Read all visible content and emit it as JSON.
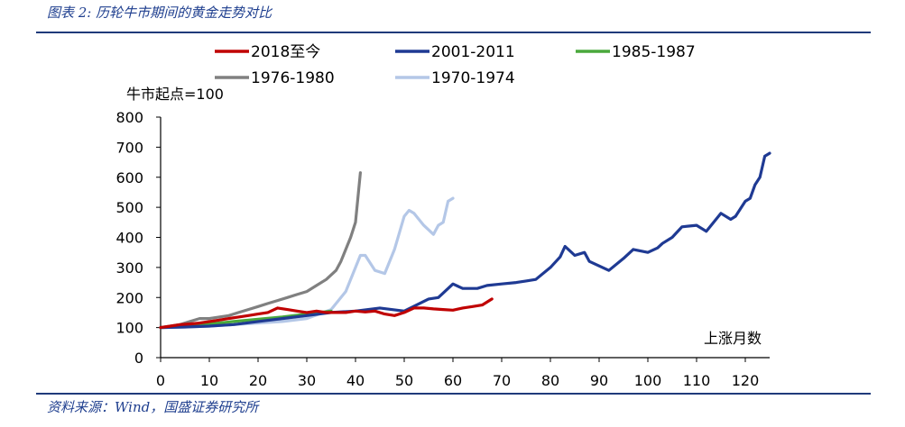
{
  "figure": {
    "title": "图表 2:  历轮牛市期间的黄金走势对比",
    "source": "资料来源：Wind，国盛证券研究所"
  },
  "chart_data": {
    "type": "line",
    "ylabel": "牛市起点=100",
    "xlabel": "上涨月数",
    "xlim": [
      0,
      125
    ],
    "ylim": [
      0,
      800
    ],
    "xticks": [
      "0",
      "10",
      "20",
      "30",
      "40",
      "50",
      "60",
      "70",
      "80",
      "90",
      "100",
      "110",
      "120"
    ],
    "yticks": [
      "0",
      "100",
      "200",
      "300",
      "400",
      "500",
      "600",
      "700",
      "800"
    ],
    "grid": false,
    "legend_position": "top",
    "series": [
      {
        "name": "2018至今",
        "color": "#c00000",
        "x": [
          0,
          2,
          4,
          6,
          8,
          10,
          12,
          14,
          16,
          18,
          20,
          22,
          24,
          26,
          28,
          30,
          32,
          34,
          36,
          38,
          40,
          42,
          44,
          46,
          48,
          50,
          52,
          54,
          56,
          58,
          60,
          62,
          64,
          66,
          68
        ],
        "values": [
          100,
          105,
          110,
          112,
          115,
          120,
          125,
          130,
          135,
          140,
          145,
          150,
          165,
          160,
          155,
          150,
          155,
          150,
          150,
          150,
          155,
          152,
          155,
          145,
          140,
          150,
          165,
          165,
          162,
          160,
          158,
          165,
          170,
          175,
          195
        ]
      },
      {
        "name": "2001-2011",
        "color": "#1f3a93",
        "x": [
          0,
          5,
          10,
          15,
          20,
          25,
          30,
          35,
          40,
          45,
          50,
          55,
          57,
          60,
          62,
          65,
          67,
          70,
          73,
          75,
          77,
          80,
          82,
          83,
          85,
          87,
          88,
          90,
          92,
          95,
          97,
          100,
          102,
          103,
          105,
          107,
          110,
          112,
          115,
          117,
          118,
          120,
          121,
          122,
          123,
          124,
          125
        ],
        "values": [
          100,
          102,
          105,
          110,
          120,
          130,
          140,
          150,
          155,
          165,
          155,
          195,
          200,
          245,
          230,
          230,
          240,
          245,
          250,
          255,
          260,
          300,
          335,
          370,
          340,
          350,
          320,
          305,
          290,
          330,
          360,
          350,
          365,
          380,
          400,
          435,
          440,
          420,
          480,
          460,
          470,
          520,
          530,
          575,
          600,
          670,
          680
        ]
      },
      {
        "name": "1985-1987",
        "color": "#4aa83c",
        "x": [
          0,
          5,
          10,
          15,
          20,
          25,
          30,
          35
        ],
        "values": [
          100,
          105,
          112,
          120,
          128,
          135,
          145,
          155
        ]
      },
      {
        "name": "1976-1980",
        "color": "#808080",
        "x": [
          0,
          2,
          4,
          6,
          8,
          10,
          12,
          14,
          16,
          18,
          20,
          22,
          24,
          26,
          28,
          30,
          32,
          34,
          36,
          37,
          38,
          39,
          40,
          41
        ],
        "values": [
          100,
          105,
          110,
          120,
          130,
          130,
          135,
          140,
          150,
          160,
          170,
          180,
          190,
          200,
          210,
          220,
          240,
          260,
          290,
          320,
          360,
          400,
          450,
          615
        ]
      },
      {
        "name": "1970-1974",
        "color": "#b4c7e7",
        "x": [
          0,
          5,
          10,
          15,
          20,
          25,
          30,
          35,
          38,
          40,
          41,
          42,
          44,
          46,
          48,
          50,
          51,
          52,
          54,
          56,
          57,
          58,
          59,
          60
        ],
        "values": [
          100,
          102,
          105,
          110,
          115,
          120,
          130,
          160,
          220,
          300,
          340,
          340,
          290,
          280,
          360,
          470,
          490,
          480,
          440,
          410,
          440,
          450,
          520,
          530
        ]
      }
    ]
  }
}
